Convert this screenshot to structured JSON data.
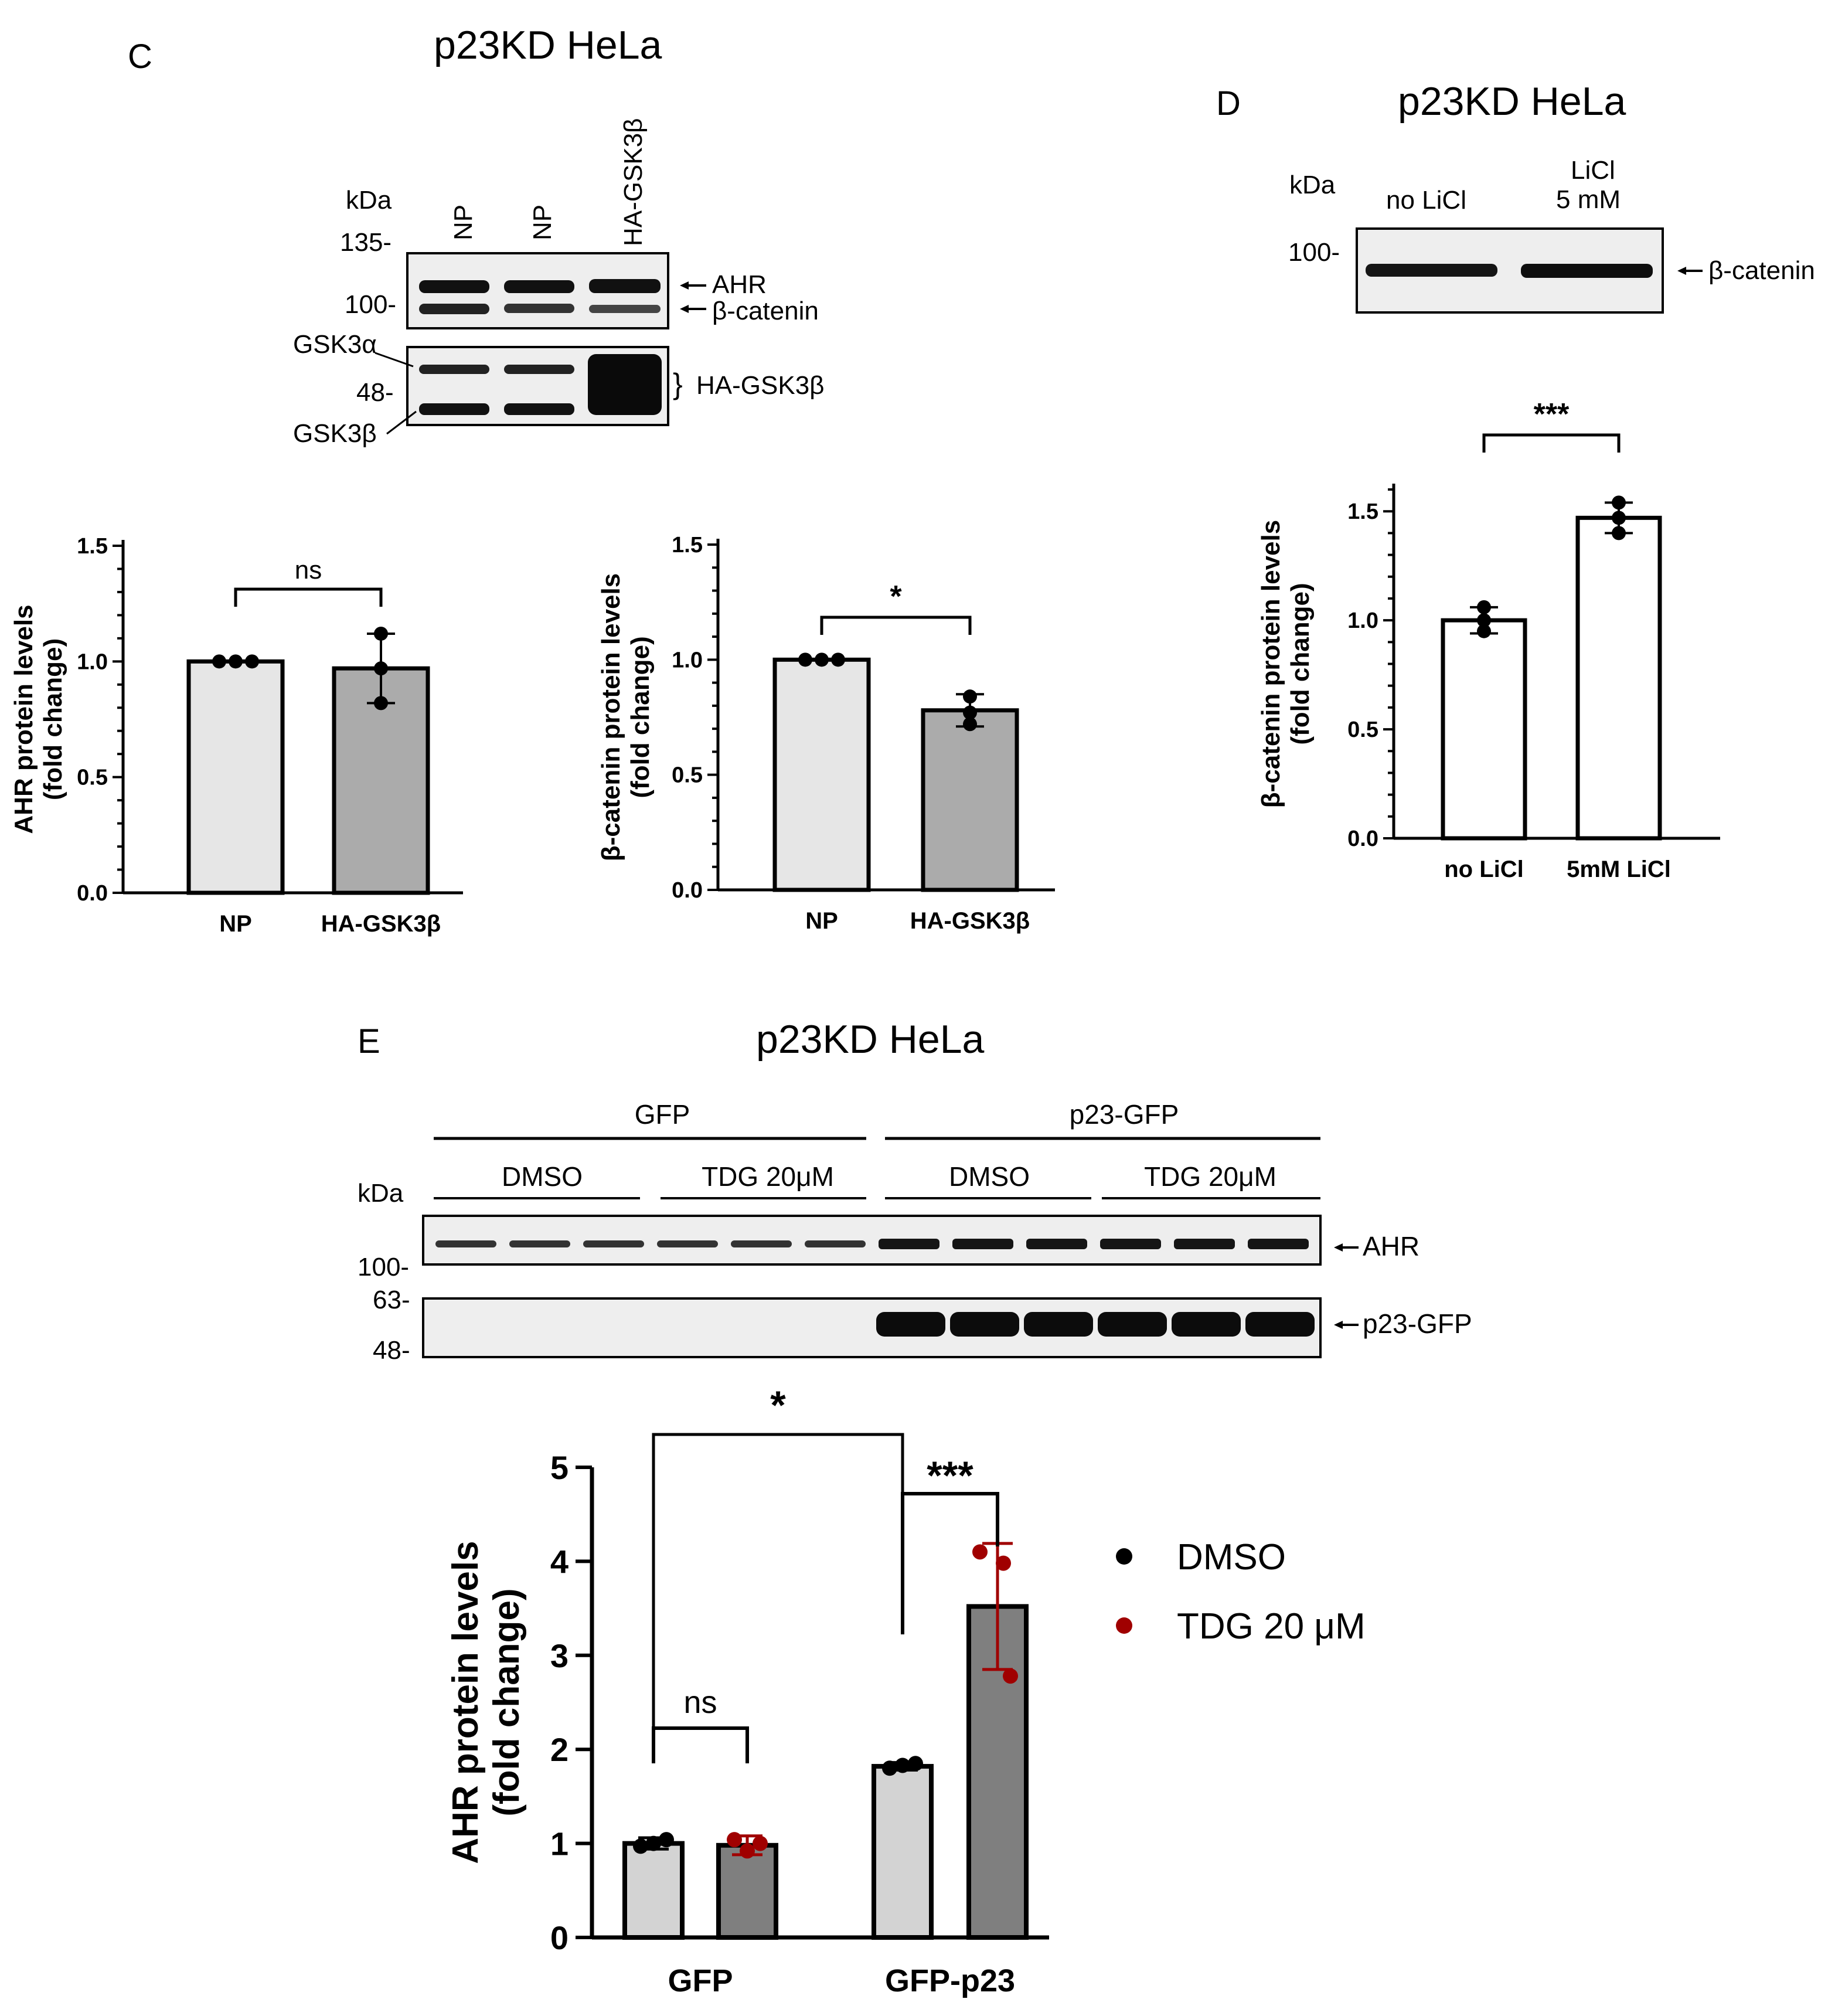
{
  "panel_c": {
    "letter": "C",
    "title": "p23KD HeLa",
    "blot": {
      "kda_label": "kDa",
      "lanes": [
        "NP",
        "NP",
        "HA-GSK3β"
      ],
      "markers_top": [
        "135-",
        "100-"
      ],
      "markers_bottom": [
        "48-"
      ],
      "right_labels": [
        "AHR",
        "β-catenin",
        "HA-GSK3β"
      ],
      "left_labels": [
        "GSK3α",
        "GSK3β"
      ]
    }
  },
  "panel_d": {
    "letter": "D",
    "title": "p23KD HeLa",
    "blot": {
      "kda_label": "kDa",
      "lane_labels": [
        "no LiCl",
        "LiCl",
        "5 mM"
      ],
      "markers": [
        "100-"
      ],
      "right_labels": [
        "β-catenin"
      ]
    }
  },
  "panel_e": {
    "letter": "E",
    "title": "p23KD HeLa",
    "blot": {
      "group_labels": [
        "GFP",
        "p23-GFP"
      ],
      "treatment_labels": [
        "DMSO",
        "TDG 20μM",
        "DMSO",
        "TDG 20μM"
      ],
      "kda_label": "kDa",
      "markers": [
        "100-",
        "63-",
        "48-"
      ],
      "right_labels": [
        "AHR",
        "p23-GFP"
      ]
    }
  },
  "chart_data": [
    {
      "id": "c-ahr",
      "type": "bar",
      "categories": [
        "NP",
        "HA-GSK3β"
      ],
      "values": [
        1.0,
        0.97
      ],
      "errors": [
        0.0,
        0.15
      ],
      "points": [
        [
          1.0,
          1.0,
          1.0
        ],
        [
          1.12,
          0.97,
          0.82
        ]
      ],
      "bar_colors": [
        "#e6e6e6",
        "#ababab"
      ],
      "ylabel": [
        "AHR protein levels",
        "(fold change)"
      ],
      "ylim": [
        0,
        1.5
      ],
      "yticks": [
        "0.0",
        "0.5",
        "1.0",
        "1.5"
      ],
      "significance": [
        {
          "from": 0,
          "to": 1,
          "label": "ns"
        }
      ]
    },
    {
      "id": "c-bcat",
      "type": "bar",
      "categories": [
        "NP",
        "HA-GSK3β"
      ],
      "values": [
        1.0,
        0.78
      ],
      "errors": [
        0.0,
        0.07
      ],
      "points": [
        [
          1.0,
          1.0,
          1.0
        ],
        [
          0.84,
          0.77,
          0.72
        ]
      ],
      "bar_colors": [
        "#e6e6e6",
        "#ababab"
      ],
      "ylabel": [
        "β-catenin protein levels",
        "(fold change)"
      ],
      "ylim": [
        0,
        1.5
      ],
      "yticks": [
        "0.0",
        "0.5",
        "1.0",
        "1.5"
      ],
      "significance": [
        {
          "from": 0,
          "to": 1,
          "label": "*"
        }
      ]
    },
    {
      "id": "d-bcat",
      "type": "bar",
      "categories": [
        "no LiCl",
        "5mM LiCl"
      ],
      "values": [
        1.0,
        1.47
      ],
      "errors": [
        0.06,
        0.07
      ],
      "points": [
        [
          1.06,
          1.0,
          0.95
        ],
        [
          1.54,
          1.47,
          1.4
        ]
      ],
      "bar_colors": [
        "#ffffff",
        "#ffffff"
      ],
      "ylabel": [
        "β-catenin protein levels",
        "(fold change)"
      ],
      "ylim": [
        0,
        1.6
      ],
      "yticks": [
        "0.0",
        "0.5",
        "1.0",
        "1.5"
      ],
      "significance": [
        {
          "from": 0,
          "to": 1,
          "label": "***"
        }
      ]
    },
    {
      "id": "e-ahr",
      "type": "bar",
      "categories": [
        "GFP",
        "GFP-p23"
      ],
      "series": [
        {
          "name": "DMSO",
          "color": "#000000",
          "bar_color": "#d3d3d3",
          "values": [
            1.0,
            1.82
          ],
          "errors": [
            0.06,
            0.04
          ],
          "points": [
            [
              0.97,
              1.0,
              1.04
            ],
            [
              1.8,
              1.83,
              1.85
            ]
          ]
        },
        {
          "name": "TDG 20 μM",
          "color": "#a00000",
          "bar_color": "#7f7f7f",
          "values": [
            0.98,
            3.52
          ],
          "errors": [
            0.1,
            0.67
          ],
          "points": [
            [
              1.04,
              0.92,
              1.0
            ],
            [
              4.1,
              3.98,
              2.78
            ]
          ]
        }
      ],
      "ylabel": [
        "AHR protein levels",
        "(fold change)"
      ],
      "ylim": [
        0,
        5
      ],
      "yticks": [
        "0",
        "1",
        "2",
        "3",
        "4",
        "5"
      ],
      "significance": [
        {
          "label": "ns"
        },
        {
          "label": "***"
        },
        {
          "label": "*"
        }
      ],
      "legend": "right"
    }
  ]
}
